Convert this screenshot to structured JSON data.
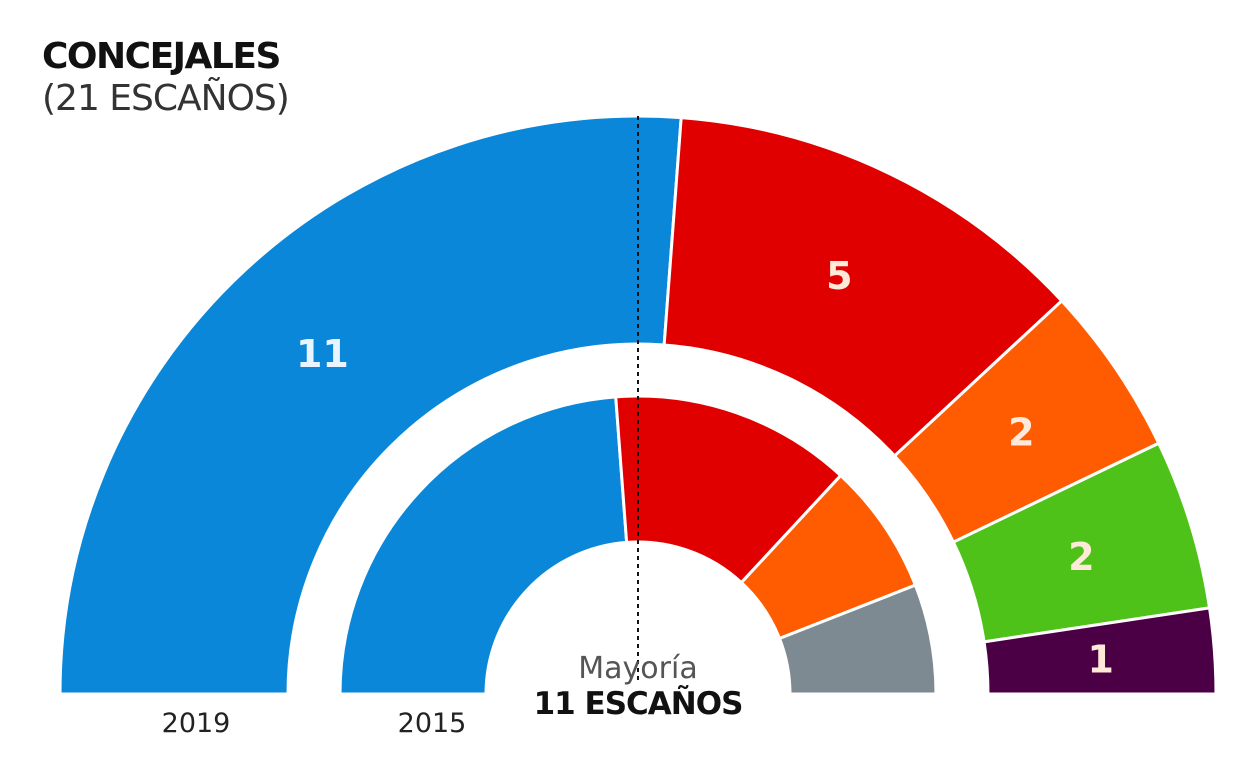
{
  "title": "CONCEJALES",
  "subtitle": "(21 ESCAÑOS)",
  "majority": {
    "label": "Mayoría",
    "value": "11 ESCAÑOS"
  },
  "chart_data": {
    "type": "parliament-semicircle",
    "total_seats": 21,
    "majority_seats": 11,
    "rings": [
      {
        "year": "2019",
        "segments": [
          {
            "seats": 11,
            "label": "11",
            "color": "#0a87d8"
          },
          {
            "seats": 5,
            "label": "5",
            "color": "#e00000"
          },
          {
            "seats": 2,
            "label": "2",
            "color": "#ff5b00"
          },
          {
            "seats": 2,
            "label": "2",
            "color": "#4fc21a"
          },
          {
            "seats": 1,
            "label": "1",
            "color": "#4b0046"
          }
        ]
      },
      {
        "year": "2015",
        "segments": [
          {
            "seats": 10,
            "color": "#0a87d8"
          },
          {
            "seats": 5.5,
            "color": "#e00000"
          },
          {
            "seats": 3,
            "color": "#ff5b00"
          },
          {
            "seats": 2.5,
            "color": "#7d8a92"
          }
        ]
      }
    ]
  }
}
